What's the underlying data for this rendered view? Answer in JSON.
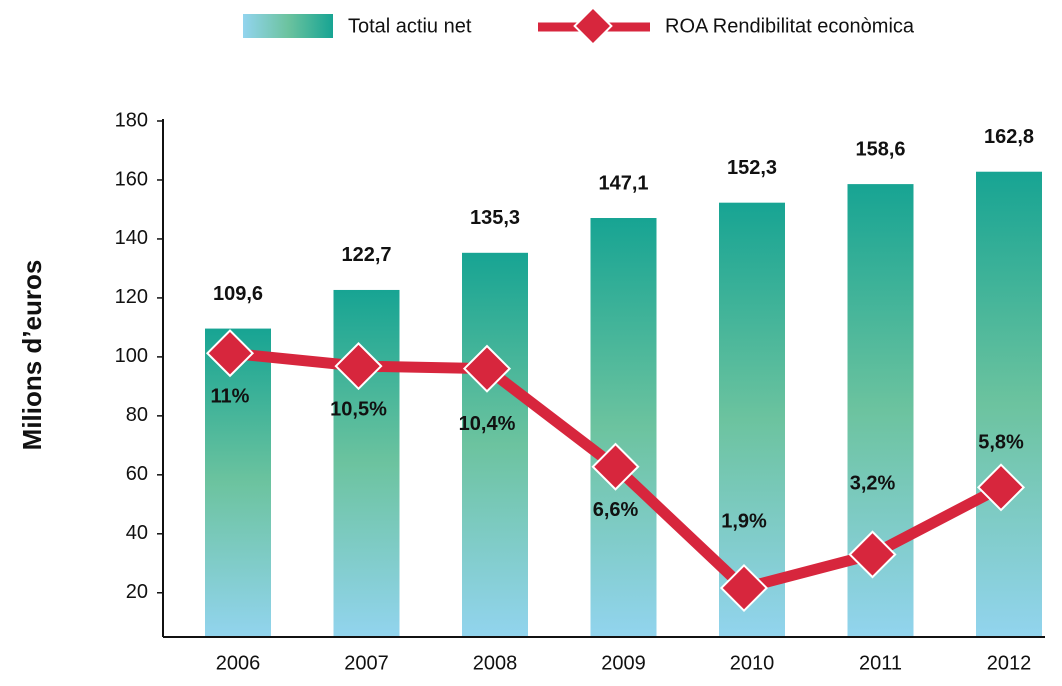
{
  "chart_data": {
    "type": "bar+line",
    "y_axis_label": "Milions d’euros",
    "categories": [
      "2006",
      "2007",
      "2008",
      "2009",
      "2010",
      "2011",
      "2012"
    ],
    "series": [
      {
        "name": "Total actiu net",
        "type": "bar",
        "color": "#17a493",
        "values": [
          109.6,
          122.7,
          135.3,
          147.1,
          152.3,
          158.6,
          162.8
        ],
        "value_labels": [
          "109,6",
          "122,7",
          "135,3",
          "147,1",
          "152,3",
          "158,6",
          "162,8"
        ]
      },
      {
        "name": "ROA Rendibilitat econòmica",
        "type": "line",
        "axis": "y2",
        "color": "#d7263d",
        "values": [
          11,
          10.5,
          10.4,
          6.6,
          1.9,
          3.2,
          5.8
        ],
        "value_labels": [
          "11%",
          "10,5%",
          "10,4%",
          "6,6%",
          "1,9%",
          "3,2%",
          "5,8%"
        ]
      }
    ],
    "ylim": [
      5,
      180
    ],
    "yticks": [
      20,
      40,
      60,
      80,
      100,
      120,
      140,
      160,
      180
    ],
    "y2lim": [
      0,
      20
    ],
    "legend": "top"
  }
}
